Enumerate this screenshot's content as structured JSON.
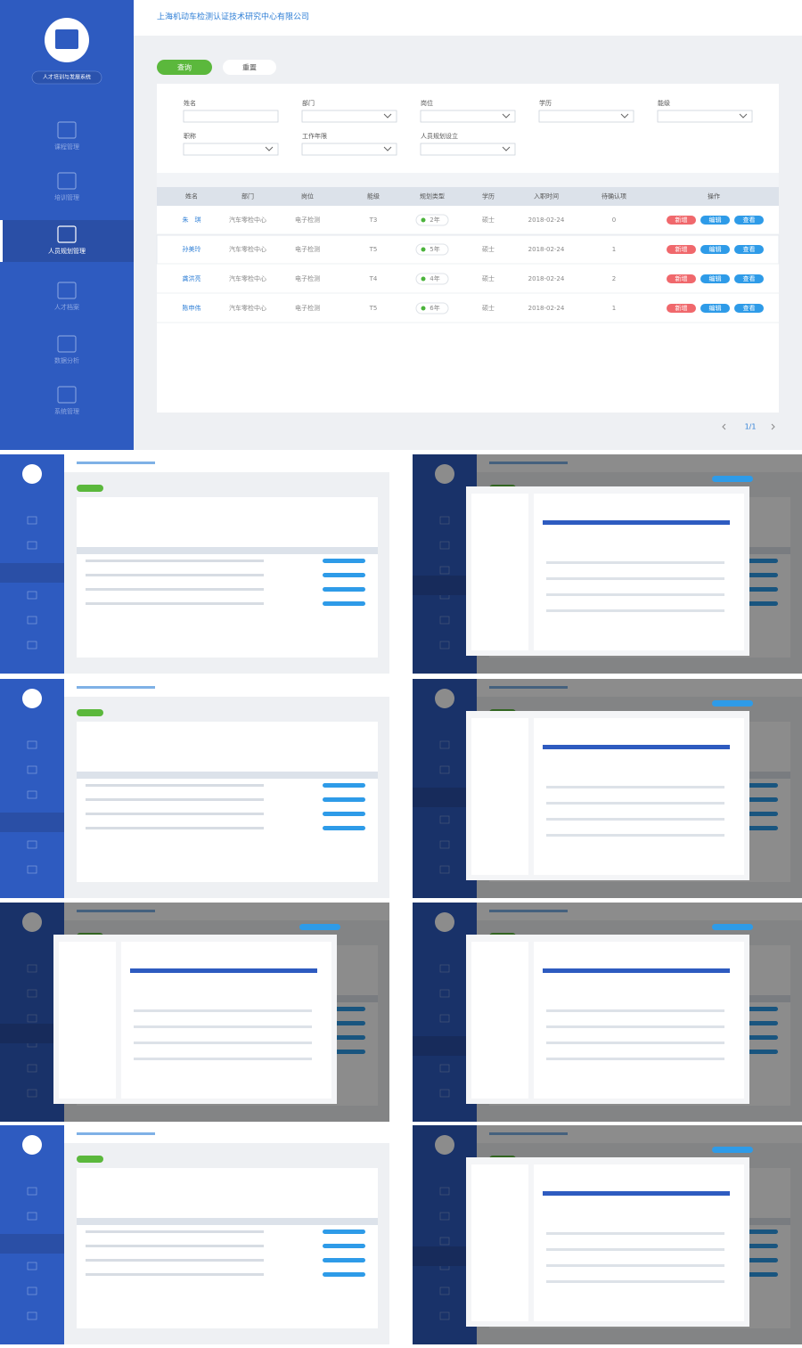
{
  "header": {
    "company": "上海机动车检测认证技术研究中心有限公司",
    "system": "人才培训与发展系统"
  },
  "sidebar": {
    "items": [
      "课程管理",
      "培训管理",
      "人员规划管理",
      "人才档案",
      "数据分析",
      "系统管理"
    ],
    "active": 2
  },
  "buttons": {
    "query": "查询",
    "reset": "重置"
  },
  "filters": {
    "labels": [
      "姓名",
      "部门",
      "岗位",
      "学历",
      "能级",
      "职称",
      "工作年限",
      "人员规划设立"
    ]
  },
  "table": {
    "headers": [
      "姓名",
      "部门",
      "岗位",
      "能级",
      "规划类型",
      "学历",
      "入职时间",
      "待确认项",
      "操作"
    ],
    "rows": [
      [
        "朱　琪",
        "汽车零检中心",
        "电子检测",
        "T3",
        "2年",
        "硕士",
        "2018-02-24",
        "0"
      ],
      [
        "孙美玲",
        "汽车零检中心",
        "电子检测",
        "T5",
        "5年",
        "硕士",
        "2018-02-24",
        "1"
      ],
      [
        "龚洪亮",
        "汽车零检中心",
        "电子检测",
        "T4",
        "4年",
        "硕士",
        "2018-02-24",
        "2"
      ],
      [
        "陈申伟",
        "汽车零检中心",
        "电子检测",
        "T5",
        "6年",
        "硕士",
        "2018-02-24",
        "1"
      ]
    ],
    "actions": [
      "新增",
      "编辑",
      "查看"
    ]
  },
  "pagination": "1/1"
}
